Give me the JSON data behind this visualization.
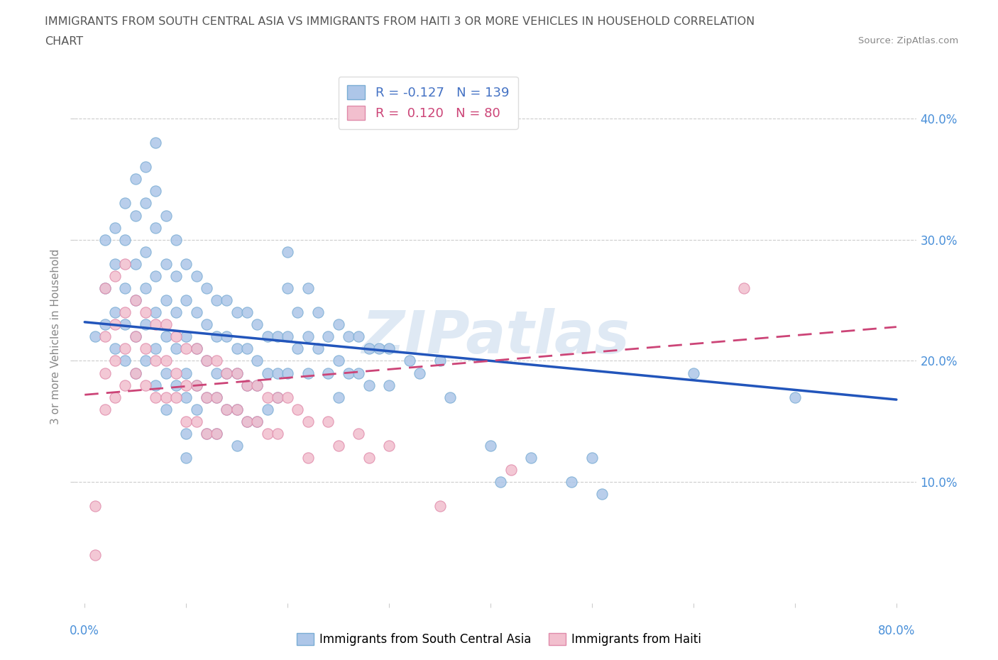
{
  "title_line1": "IMMIGRANTS FROM SOUTH CENTRAL ASIA VS IMMIGRANTS FROM HAITI 3 OR MORE VEHICLES IN HOUSEHOLD CORRELATION",
  "title_line2": "CHART",
  "source_text": "Source: ZipAtlas.com",
  "ylabel": "3 or more Vehicles in Household",
  "xlim": [
    -0.01,
    0.82
  ],
  "ylim": [
    0.0,
    0.44
  ],
  "blue_color": "#adc6e8",
  "blue_edge_color": "#7aadd4",
  "pink_color": "#f2bfce",
  "pink_edge_color": "#e08aaa",
  "blue_line_color": "#2255bb",
  "pink_line_color": "#cc4477",
  "R_blue": -0.127,
  "N_blue": 139,
  "R_pink": 0.12,
  "N_pink": 80,
  "legend_label_blue": "Immigrants from South Central Asia",
  "legend_label_pink": "Immigrants from Haiti",
  "watermark_text": "ZIPatlas",
  "watermark_color": "#c5d8ec",
  "watermark_alpha": 0.55,
  "grid_color": "#cccccc",
  "background_color": "#ffffff",
  "title_color": "#555555",
  "axis_color": "#888888",
  "tick_color": "#4a90d9",
  "legend_R_color_blue": "#4472c4",
  "legend_R_color_pink": "#cc4477",
  "blue_trend_x": [
    0.0,
    0.8
  ],
  "blue_trend_y_start": 0.232,
  "blue_trend_y_end": 0.168,
  "pink_trend_x": [
    0.0,
    0.8
  ],
  "pink_trend_y_start": 0.172,
  "pink_trend_y_end": 0.228,
  "blue_scatter_x": [
    0.01,
    0.02,
    0.02,
    0.02,
    0.03,
    0.03,
    0.03,
    0.03,
    0.04,
    0.04,
    0.04,
    0.04,
    0.04,
    0.05,
    0.05,
    0.05,
    0.05,
    0.05,
    0.05,
    0.06,
    0.06,
    0.06,
    0.06,
    0.06,
    0.06,
    0.07,
    0.07,
    0.07,
    0.07,
    0.07,
    0.07,
    0.07,
    0.08,
    0.08,
    0.08,
    0.08,
    0.08,
    0.08,
    0.09,
    0.09,
    0.09,
    0.09,
    0.09,
    0.1,
    0.1,
    0.1,
    0.1,
    0.1,
    0.1,
    0.1,
    0.11,
    0.11,
    0.11,
    0.11,
    0.11,
    0.12,
    0.12,
    0.12,
    0.12,
    0.12,
    0.13,
    0.13,
    0.13,
    0.13,
    0.13,
    0.14,
    0.14,
    0.14,
    0.14,
    0.15,
    0.15,
    0.15,
    0.15,
    0.15,
    0.16,
    0.16,
    0.16,
    0.16,
    0.17,
    0.17,
    0.17,
    0.17,
    0.18,
    0.18,
    0.18,
    0.19,
    0.19,
    0.19,
    0.2,
    0.2,
    0.2,
    0.2,
    0.21,
    0.21,
    0.22,
    0.22,
    0.22,
    0.23,
    0.23,
    0.24,
    0.24,
    0.25,
    0.25,
    0.25,
    0.26,
    0.26,
    0.27,
    0.27,
    0.28,
    0.28,
    0.29,
    0.3,
    0.3,
    0.32,
    0.33,
    0.35,
    0.36,
    0.4,
    0.41,
    0.44,
    0.48,
    0.5,
    0.51,
    0.6,
    0.7
  ],
  "blue_scatter_y": [
    0.22,
    0.3,
    0.26,
    0.23,
    0.31,
    0.28,
    0.24,
    0.21,
    0.33,
    0.3,
    0.26,
    0.23,
    0.2,
    0.35,
    0.32,
    0.28,
    0.25,
    0.22,
    0.19,
    0.36,
    0.33,
    0.29,
    0.26,
    0.23,
    0.2,
    0.38,
    0.34,
    0.31,
    0.27,
    0.24,
    0.21,
    0.18,
    0.32,
    0.28,
    0.25,
    0.22,
    0.19,
    0.16,
    0.3,
    0.27,
    0.24,
    0.21,
    0.18,
    0.28,
    0.25,
    0.22,
    0.19,
    0.17,
    0.14,
    0.12,
    0.27,
    0.24,
    0.21,
    0.18,
    0.16,
    0.26,
    0.23,
    0.2,
    0.17,
    0.14,
    0.25,
    0.22,
    0.19,
    0.17,
    0.14,
    0.25,
    0.22,
    0.19,
    0.16,
    0.24,
    0.21,
    0.19,
    0.16,
    0.13,
    0.24,
    0.21,
    0.18,
    0.15,
    0.23,
    0.2,
    0.18,
    0.15,
    0.22,
    0.19,
    0.16,
    0.22,
    0.19,
    0.17,
    0.29,
    0.26,
    0.22,
    0.19,
    0.24,
    0.21,
    0.26,
    0.22,
    0.19,
    0.24,
    0.21,
    0.22,
    0.19,
    0.23,
    0.2,
    0.17,
    0.22,
    0.19,
    0.22,
    0.19,
    0.21,
    0.18,
    0.21,
    0.21,
    0.18,
    0.2,
    0.19,
    0.2,
    0.17,
    0.13,
    0.1,
    0.12,
    0.1,
    0.12,
    0.09,
    0.19,
    0.17
  ],
  "pink_scatter_x": [
    0.01,
    0.01,
    0.02,
    0.02,
    0.02,
    0.02,
    0.03,
    0.03,
    0.03,
    0.03,
    0.04,
    0.04,
    0.04,
    0.04,
    0.05,
    0.05,
    0.05,
    0.06,
    0.06,
    0.06,
    0.07,
    0.07,
    0.07,
    0.08,
    0.08,
    0.08,
    0.09,
    0.09,
    0.09,
    0.1,
    0.1,
    0.1,
    0.11,
    0.11,
    0.11,
    0.12,
    0.12,
    0.12,
    0.13,
    0.13,
    0.13,
    0.14,
    0.14,
    0.15,
    0.15,
    0.16,
    0.16,
    0.17,
    0.17,
    0.18,
    0.18,
    0.19,
    0.19,
    0.2,
    0.21,
    0.22,
    0.22,
    0.24,
    0.25,
    0.27,
    0.28,
    0.3,
    0.35,
    0.42,
    0.65
  ],
  "pink_scatter_y": [
    0.08,
    0.04,
    0.26,
    0.22,
    0.19,
    0.16,
    0.27,
    0.23,
    0.2,
    0.17,
    0.28,
    0.24,
    0.21,
    0.18,
    0.25,
    0.22,
    0.19,
    0.24,
    0.21,
    0.18,
    0.23,
    0.2,
    0.17,
    0.23,
    0.2,
    0.17,
    0.22,
    0.19,
    0.17,
    0.21,
    0.18,
    0.15,
    0.21,
    0.18,
    0.15,
    0.2,
    0.17,
    0.14,
    0.2,
    0.17,
    0.14,
    0.19,
    0.16,
    0.19,
    0.16,
    0.18,
    0.15,
    0.18,
    0.15,
    0.17,
    0.14,
    0.17,
    0.14,
    0.17,
    0.16,
    0.15,
    0.12,
    0.15,
    0.13,
    0.14,
    0.12,
    0.13,
    0.08,
    0.11,
    0.26
  ]
}
